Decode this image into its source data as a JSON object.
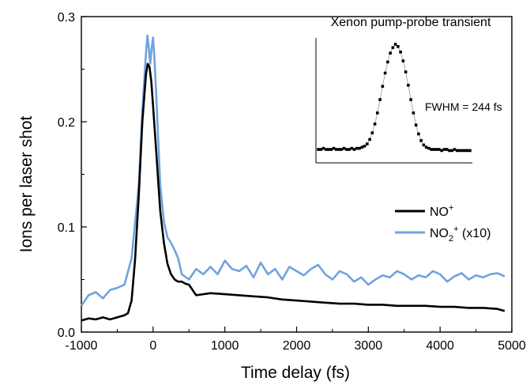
{
  "chart_data": {
    "type": "line",
    "xlabel": "Time delay (fs)",
    "ylabel": "Ions per laser shot",
    "xlim": [
      -1000,
      5000
    ],
    "ylim": [
      0,
      0.3
    ],
    "xticks": [
      "-1000",
      "0",
      "1000",
      "2000",
      "3000",
      "4000",
      "5000"
    ],
    "yticks": [
      "0.0",
      "0.1",
      "0.2",
      "0.3"
    ],
    "grid": false,
    "legend_position": "right",
    "legend": [
      {
        "base": "NO",
        "sup": "+",
        "sub": "",
        "sup2": "",
        "suffix": ""
      },
      {
        "base": "NO",
        "sup": "",
        "sub": "2",
        "sup2": "+",
        "suffix": " (x10)"
      }
    ],
    "series": [
      {
        "name": "NO⁺",
        "color": "#000000",
        "x": [
          -1000,
          -900,
          -800,
          -700,
          -600,
          -500,
          -400,
          -350,
          -300,
          -250,
          -200,
          -150,
          -100,
          -75,
          -50,
          -25,
          0,
          25,
          50,
          75,
          100,
          150,
          200,
          250,
          300,
          350,
          400,
          450,
          500,
          600,
          800,
          1000,
          1200,
          1400,
          1600,
          1800,
          2000,
          2200,
          2400,
          2600,
          2800,
          3000,
          3200,
          3400,
          3600,
          3800,
          4000,
          4200,
          4400,
          4600,
          4800,
          4900
        ],
        "y": [
          0.011,
          0.013,
          0.012,
          0.014,
          0.012,
          0.014,
          0.016,
          0.018,
          0.03,
          0.07,
          0.13,
          0.2,
          0.245,
          0.255,
          0.252,
          0.238,
          0.215,
          0.19,
          0.165,
          0.14,
          0.115,
          0.085,
          0.065,
          0.055,
          0.05,
          0.048,
          0.048,
          0.046,
          0.045,
          0.035,
          0.037,
          0.036,
          0.035,
          0.034,
          0.033,
          0.031,
          0.03,
          0.029,
          0.028,
          0.027,
          0.027,
          0.026,
          0.026,
          0.025,
          0.025,
          0.025,
          0.024,
          0.024,
          0.023,
          0.023,
          0.022,
          0.02
        ]
      },
      {
        "name": "NO₂⁺ (x10)",
        "color": "#6fa3de",
        "x": [
          -1000,
          -900,
          -800,
          -700,
          -600,
          -500,
          -400,
          -300,
          -200,
          -150,
          -100,
          -80,
          -60,
          -40,
          -20,
          0,
          20,
          40,
          60,
          80,
          100,
          150,
          200,
          250,
          300,
          350,
          400,
          500,
          600,
          700,
          800,
          900,
          1000,
          1100,
          1200,
          1300,
          1400,
          1500,
          1600,
          1700,
          1800,
          1900,
          2000,
          2100,
          2200,
          2300,
          2400,
          2500,
          2600,
          2700,
          2800,
          2900,
          3000,
          3100,
          3200,
          3300,
          3400,
          3500,
          3600,
          3700,
          3800,
          3900,
          4000,
          4100,
          4200,
          4300,
          4400,
          4500,
          4600,
          4700,
          4800,
          4900
        ],
        "y": [
          0.025,
          0.035,
          0.038,
          0.032,
          0.04,
          0.042,
          0.045,
          0.07,
          0.14,
          0.21,
          0.265,
          0.282,
          0.27,
          0.255,
          0.27,
          0.28,
          0.258,
          0.23,
          0.2,
          0.17,
          0.14,
          0.105,
          0.09,
          0.085,
          0.078,
          0.07,
          0.055,
          0.05,
          0.06,
          0.055,
          0.062,
          0.055,
          0.068,
          0.06,
          0.058,
          0.063,
          0.052,
          0.066,
          0.055,
          0.06,
          0.05,
          0.062,
          0.058,
          0.054,
          0.06,
          0.064,
          0.055,
          0.05,
          0.058,
          0.055,
          0.048,
          0.052,
          0.045,
          0.05,
          0.054,
          0.052,
          0.058,
          0.055,
          0.05,
          0.054,
          0.052,
          0.058,
          0.055,
          0.048,
          0.053,
          0.056,
          0.05,
          0.054,
          0.052,
          0.055,
          0.056,
          0.053
        ]
      }
    ],
    "inset": {
      "title": "Xenon pump-probe transient",
      "annotation": "FWHM = 244 fs",
      "x": [
        0,
        1,
        2,
        3,
        4,
        5,
        6,
        7,
        8,
        9,
        10,
        11,
        12,
        13,
        14,
        15,
        16,
        17,
        18,
        19,
        20,
        21,
        22,
        23,
        24,
        25,
        26,
        27,
        28,
        29,
        30,
        31,
        32,
        33,
        34,
        35,
        36,
        37,
        38,
        39,
        40,
        41,
        42,
        43,
        44,
        45,
        46,
        47,
        48,
        49,
        50,
        51,
        52,
        53,
        54,
        55,
        56,
        57,
        58,
        59
      ],
      "y": [
        0.05,
        0.05,
        0.06,
        0.05,
        0.05,
        0.05,
        0.06,
        0.05,
        0.05,
        0.05,
        0.06,
        0.05,
        0.05,
        0.06,
        0.05,
        0.06,
        0.06,
        0.07,
        0.08,
        0.1,
        0.14,
        0.2,
        0.28,
        0.38,
        0.5,
        0.62,
        0.74,
        0.84,
        0.92,
        0.97,
        1.0,
        0.98,
        0.93,
        0.85,
        0.75,
        0.63,
        0.5,
        0.38,
        0.27,
        0.19,
        0.13,
        0.09,
        0.07,
        0.06,
        0.05,
        0.05,
        0.05,
        0.05,
        0.04,
        0.05,
        0.05,
        0.04,
        0.04,
        0.05,
        0.04,
        0.04,
        0.04,
        0.04,
        0.04,
        0.04
      ]
    }
  }
}
